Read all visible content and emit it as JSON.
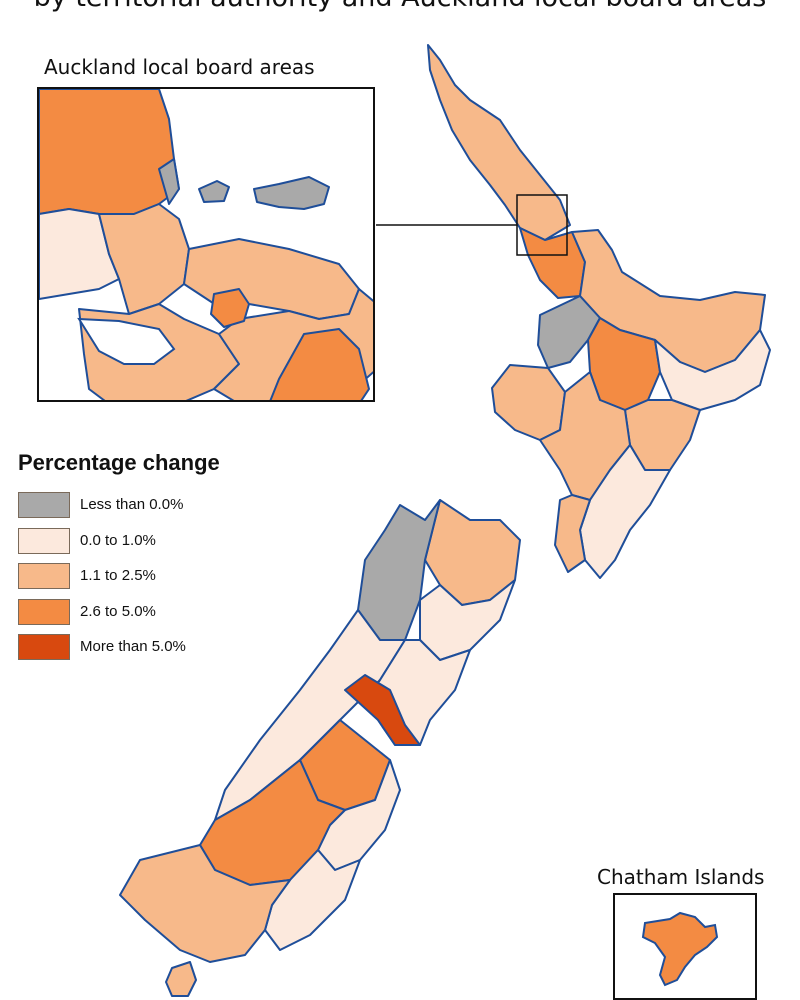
{
  "title": "by territorial authority and Auckland local board areas",
  "inset_auckland": {
    "label": "Auckland local board areas"
  },
  "inset_chatham": {
    "label": "Chatham Islands"
  },
  "legend": {
    "title": "Percentage change",
    "items": [
      {
        "label": "Less than 0.0%",
        "color": "#a9a9a9"
      },
      {
        "label": "0.0 to 1.0%",
        "color": "#fce9dd"
      },
      {
        "label": "1.1 to 2.5%",
        "color": "#f7b98a"
      },
      {
        "label": "2.6 to 5.0%",
        "color": "#f38b43"
      },
      {
        "label": "More than 5.0%",
        "color": "#d8490f"
      }
    ]
  },
  "colors": {
    "coast": "#1f4e99",
    "boundary": "#8a7a6a"
  }
}
